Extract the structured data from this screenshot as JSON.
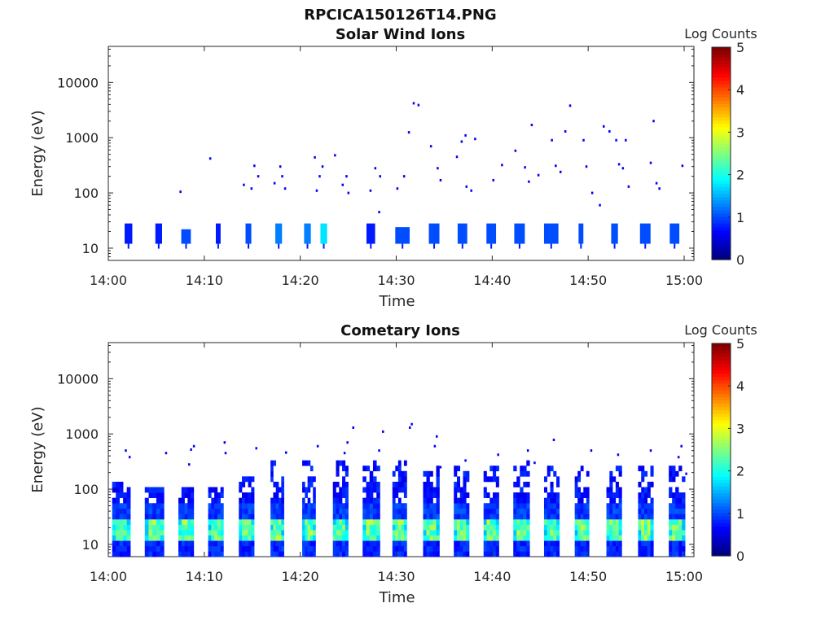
{
  "figure_title": "RPCICA150126T14.PNG",
  "chart_data": [
    {
      "type": "heatmap",
      "title": "Solar Wind Ions",
      "xlabel": "Time",
      "ylabel": "Energy (eV)",
      "x_ticks": [
        "14:00",
        "14:10",
        "14:20",
        "14:30",
        "14:40",
        "14:50",
        "15:00"
      ],
      "y_ticks": [
        "10",
        "100",
        "1000",
        "10000"
      ],
      "yscale": "log",
      "ylim": [
        6,
        45000
      ],
      "xlim_minutes": [
        0,
        60.5
      ],
      "colorbar": {
        "label": "Log Counts",
        "ticks": [
          "0",
          "1",
          "2",
          "3",
          "4",
          "5"
        ],
        "range": [
          0,
          5
        ],
        "colormap": "jet"
      },
      "bursts": [
        {
          "start": 1.7,
          "end": 2.5,
          "emin": 12,
          "emax": 28,
          "level": 0.15
        },
        {
          "start": 4.9,
          "end": 5.6,
          "emin": 12,
          "emax": 28,
          "level": 0.15
        },
        {
          "start": 7.6,
          "end": 8.6,
          "emin": 12,
          "emax": 22,
          "level": 0.2
        },
        {
          "start": 11.2,
          "end": 11.7,
          "emin": 12,
          "emax": 28,
          "level": 0.15
        },
        {
          "start": 14.3,
          "end": 14.9,
          "emin": 12,
          "emax": 28,
          "level": 0.2
        },
        {
          "start": 17.4,
          "end": 18.1,
          "emin": 12,
          "emax": 28,
          "level": 0.25
        },
        {
          "start": 20.4,
          "end": 21.1,
          "emin": 12,
          "emax": 28,
          "level": 0.25
        },
        {
          "start": 22.1,
          "end": 22.8,
          "emin": 12,
          "emax": 28,
          "level": 0.35
        },
        {
          "start": 26.9,
          "end": 27.8,
          "emin": 12,
          "emax": 28,
          "level": 0.15
        },
        {
          "start": 29.9,
          "end": 31.4,
          "emin": 12,
          "emax": 24,
          "level": 0.2
        },
        {
          "start": 33.4,
          "end": 34.5,
          "emin": 12,
          "emax": 28,
          "level": 0.2
        },
        {
          "start": 36.4,
          "end": 37.4,
          "emin": 12,
          "emax": 28,
          "level": 0.2
        },
        {
          "start": 39.4,
          "end": 40.4,
          "emin": 12,
          "emax": 28,
          "level": 0.2
        },
        {
          "start": 42.3,
          "end": 43.4,
          "emin": 12,
          "emax": 28,
          "level": 0.2
        },
        {
          "start": 45.4,
          "end": 46.9,
          "emin": 12,
          "emax": 28,
          "level": 0.2
        },
        {
          "start": 49.0,
          "end": 49.5,
          "emin": 12,
          "emax": 28,
          "level": 0.2
        },
        {
          "start": 52.4,
          "end": 53.1,
          "emin": 12,
          "emax": 28,
          "level": 0.2
        },
        {
          "start": 55.4,
          "end": 56.5,
          "emin": 12,
          "emax": 28,
          "level": 0.2
        },
        {
          "start": 58.5,
          "end": 59.5,
          "emin": 12,
          "emax": 28,
          "level": 0.2
        }
      ],
      "scatter": [
        {
          "t": 7.5,
          "e": 105
        },
        {
          "t": 10.6,
          "e": 420
        },
        {
          "t": 14.1,
          "e": 140
        },
        {
          "t": 14.9,
          "e": 120
        },
        {
          "t": 15.2,
          "e": 310
        },
        {
          "t": 15.6,
          "e": 200
        },
        {
          "t": 17.3,
          "e": 150
        },
        {
          "t": 17.9,
          "e": 300
        },
        {
          "t": 18.1,
          "e": 200
        },
        {
          "t": 18.4,
          "e": 120
        },
        {
          "t": 21.5,
          "e": 440
        },
        {
          "t": 22.3,
          "e": 300
        },
        {
          "t": 22.0,
          "e": 200
        },
        {
          "t": 21.7,
          "e": 110
        },
        {
          "t": 23.6,
          "e": 480
        },
        {
          "t": 24.4,
          "e": 140
        },
        {
          "t": 24.8,
          "e": 200
        },
        {
          "t": 25.0,
          "e": 100
        },
        {
          "t": 27.3,
          "e": 110
        },
        {
          "t": 27.8,
          "e": 280
        },
        {
          "t": 28.3,
          "e": 200
        },
        {
          "t": 28.2,
          "e": 45
        },
        {
          "t": 30.1,
          "e": 120
        },
        {
          "t": 30.8,
          "e": 200
        },
        {
          "t": 31.3,
          "e": 1250
        },
        {
          "t": 31.8,
          "e": 4200
        },
        {
          "t": 32.3,
          "e": 3900
        },
        {
          "t": 33.6,
          "e": 700
        },
        {
          "t": 34.3,
          "e": 280
        },
        {
          "t": 34.6,
          "e": 170
        },
        {
          "t": 36.3,
          "e": 450
        },
        {
          "t": 36.8,
          "e": 850
        },
        {
          "t": 37.2,
          "e": 1100
        },
        {
          "t": 37.3,
          "e": 130
        },
        {
          "t": 37.8,
          "e": 110
        },
        {
          "t": 38.2,
          "e": 950
        },
        {
          "t": 40.1,
          "e": 170
        },
        {
          "t": 41.0,
          "e": 320
        },
        {
          "t": 42.4,
          "e": 580
        },
        {
          "t": 43.4,
          "e": 290
        },
        {
          "t": 43.8,
          "e": 160
        },
        {
          "t": 44.1,
          "e": 1700
        },
        {
          "t": 44.8,
          "e": 210
        },
        {
          "t": 46.2,
          "e": 900
        },
        {
          "t": 46.6,
          "e": 310
        },
        {
          "t": 47.1,
          "e": 240
        },
        {
          "t": 47.6,
          "e": 1300
        },
        {
          "t": 48.1,
          "e": 3800
        },
        {
          "t": 49.5,
          "e": 900
        },
        {
          "t": 49.8,
          "e": 300
        },
        {
          "t": 50.4,
          "e": 100
        },
        {
          "t": 51.2,
          "e": 60
        },
        {
          "t": 51.6,
          "e": 1600
        },
        {
          "t": 52.2,
          "e": 1300
        },
        {
          "t": 52.9,
          "e": 900
        },
        {
          "t": 53.2,
          "e": 330
        },
        {
          "t": 53.6,
          "e": 280
        },
        {
          "t": 53.9,
          "e": 900
        },
        {
          "t": 54.2,
          "e": 130
        },
        {
          "t": 56.5,
          "e": 350
        },
        {
          "t": 56.8,
          "e": 2000
        },
        {
          "t": 57.1,
          "e": 150
        },
        {
          "t": 57.4,
          "e": 120
        },
        {
          "t": 59.8,
          "e": 310
        }
      ]
    },
    {
      "type": "heatmap",
      "title": "Cometary Ions",
      "xlabel": "Time",
      "ylabel": "Energy (eV)",
      "x_ticks": [
        "14:00",
        "14:10",
        "14:20",
        "14:30",
        "14:40",
        "14:50",
        "15:00"
      ],
      "y_ticks": [
        "10",
        "100",
        "1000",
        "10000"
      ],
      "yscale": "log",
      "ylim": [
        6,
        45000
      ],
      "xlim_minutes": [
        0,
        60.5
      ],
      "colorbar": {
        "label": "Log Counts",
        "ticks": [
          "0",
          "1",
          "2",
          "3",
          "4",
          "5"
        ],
        "range": [
          0,
          5
        ],
        "colormap": "jet"
      },
      "bursts": [
        {
          "start": 0.4,
          "end": 2.3,
          "emax": 110
        },
        {
          "start": 3.8,
          "end": 5.8,
          "emax": 100
        },
        {
          "start": 7.3,
          "end": 8.9,
          "emax": 95
        },
        {
          "start": 10.4,
          "end": 12.0,
          "emax": 95
        },
        {
          "start": 13.6,
          "end": 15.2,
          "emax": 160
        },
        {
          "start": 16.9,
          "end": 18.3,
          "emax": 280
        },
        {
          "start": 20.2,
          "end": 21.6,
          "emax": 280
        },
        {
          "start": 23.4,
          "end": 25.0,
          "emax": 300
        },
        {
          "start": 26.5,
          "end": 28.3,
          "emax": 300
        },
        {
          "start": 29.6,
          "end": 31.1,
          "emax": 280
        },
        {
          "start": 32.8,
          "end": 34.5,
          "emax": 220
        },
        {
          "start": 36.0,
          "end": 37.6,
          "emax": 220
        },
        {
          "start": 39.1,
          "end": 40.7,
          "emax": 250
        },
        {
          "start": 42.2,
          "end": 43.9,
          "emax": 300
        },
        {
          "start": 45.4,
          "end": 47.0,
          "emax": 260
        },
        {
          "start": 48.6,
          "end": 50.1,
          "emax": 220
        },
        {
          "start": 51.9,
          "end": 53.5,
          "emax": 260
        },
        {
          "start": 55.2,
          "end": 56.8,
          "emax": 250
        },
        {
          "start": 58.4,
          "end": 60.1,
          "emax": 260
        }
      ],
      "scatter": [
        {
          "t": 1.8,
          "e": 500
        },
        {
          "t": 2.2,
          "e": 380
        },
        {
          "t": 6.0,
          "e": 450
        },
        {
          "t": 8.6,
          "e": 520
        },
        {
          "t": 8.9,
          "e": 600
        },
        {
          "t": 8.4,
          "e": 280
        },
        {
          "t": 12.1,
          "e": 700
        },
        {
          "t": 12.2,
          "e": 450
        },
        {
          "t": 15.4,
          "e": 550
        },
        {
          "t": 18.5,
          "e": 460
        },
        {
          "t": 21.8,
          "e": 600
        },
        {
          "t": 24.9,
          "e": 700
        },
        {
          "t": 24.6,
          "e": 450
        },
        {
          "t": 25.5,
          "e": 1300
        },
        {
          "t": 28.2,
          "e": 500
        },
        {
          "t": 28.6,
          "e": 1100
        },
        {
          "t": 31.4,
          "e": 1300
        },
        {
          "t": 31.6,
          "e": 1500
        },
        {
          "t": 34.2,
          "e": 900
        },
        {
          "t": 34.0,
          "e": 600
        },
        {
          "t": 34.6,
          "e": 250
        },
        {
          "t": 37.2,
          "e": 330
        },
        {
          "t": 40.6,
          "e": 420
        },
        {
          "t": 43.7,
          "e": 500
        },
        {
          "t": 44.4,
          "e": 300
        },
        {
          "t": 46.4,
          "e": 780
        },
        {
          "t": 50.3,
          "e": 500
        },
        {
          "t": 53.1,
          "e": 420
        },
        {
          "t": 56.5,
          "e": 500
        },
        {
          "t": 59.4,
          "e": 380
        },
        {
          "t": 59.7,
          "e": 600
        },
        {
          "t": 60.2,
          "e": 190
        }
      ]
    }
  ]
}
